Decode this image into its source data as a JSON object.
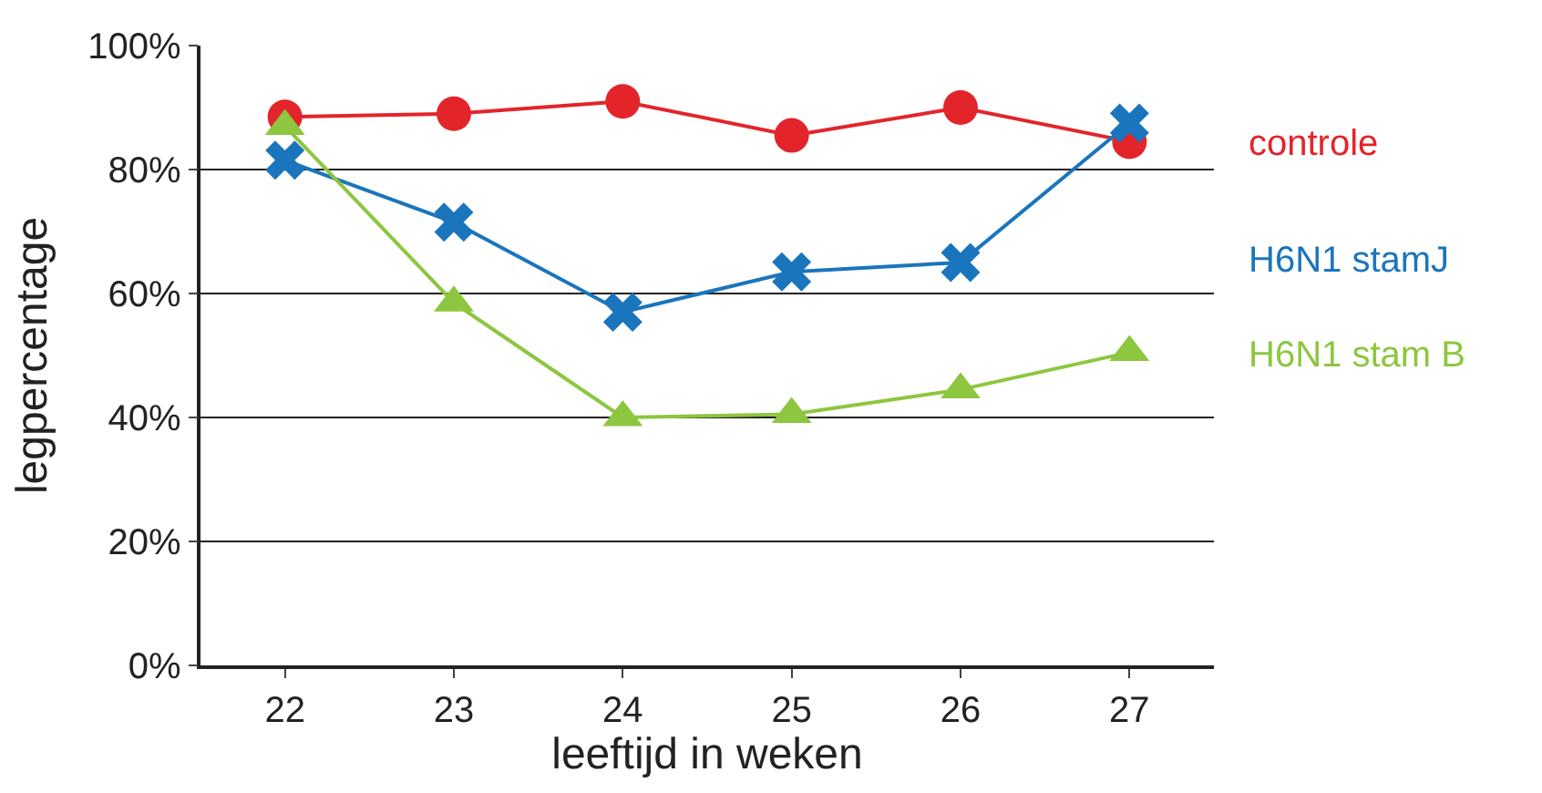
{
  "chart_data": {
    "type": "line",
    "xlabel": "leeftijd in weken",
    "ylabel": "legpercentage",
    "categories": [
      "22",
      "23",
      "24",
      "25",
      "26",
      "27"
    ],
    "series": [
      {
        "name": "controle",
        "color": "#e3242b",
        "marker": "circle",
        "values": [
          88.5,
          89,
          91,
          85.5,
          90,
          84.5
        ]
      },
      {
        "name": "H6N1 stamJ",
        "color": "#1a75bc",
        "marker": "cross",
        "values": [
          81.5,
          71.5,
          57,
          63.5,
          65,
          87.5
        ]
      },
      {
        "name": "H6N1 stam B",
        "color": "#8dc63f",
        "marker": "triangle",
        "values": [
          87,
          58.5,
          40,
          40.5,
          44.5,
          50.5
        ]
      }
    ],
    "ylim": [
      0,
      100
    ],
    "yticks": [
      {
        "value": 0,
        "label": "0%"
      },
      {
        "value": 20,
        "label": "20%"
      },
      {
        "value": 40,
        "label": "40%"
      },
      {
        "value": 60,
        "label": "60%"
      },
      {
        "value": 80,
        "label": "80%"
      },
      {
        "value": 100,
        "label": "100%"
      }
    ],
    "grid": "y",
    "legend": false,
    "line_style": "solid"
  }
}
